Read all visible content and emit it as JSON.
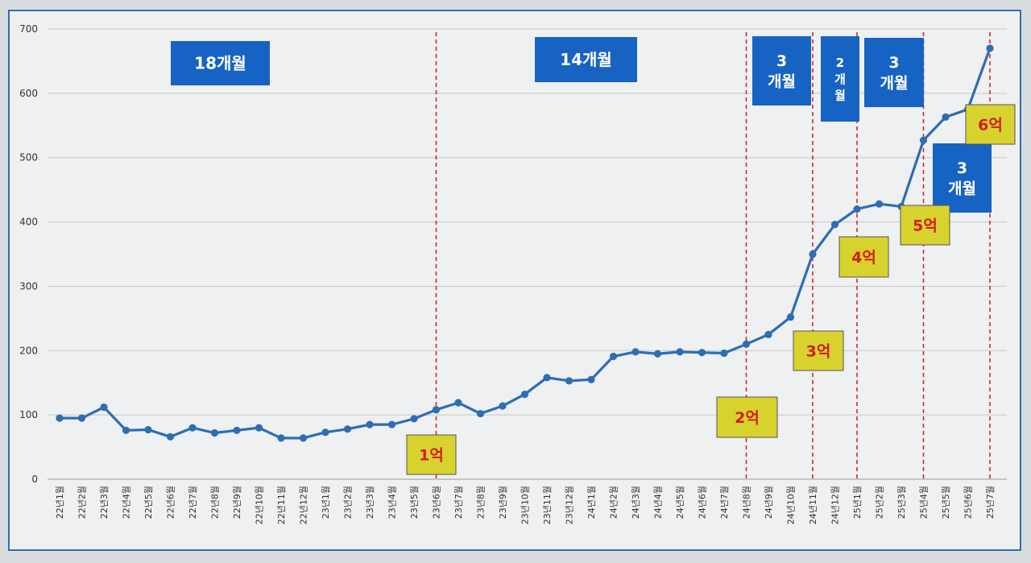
{
  "chart_data": {
    "type": "line",
    "title": "",
    "xlabel": "",
    "ylabel": "",
    "ylim": [
      0,
      700
    ],
    "yticks": [
      0,
      100,
      200,
      300,
      400,
      500,
      600,
      700
    ],
    "grid": true,
    "categories": [
      "22년1월",
      "22년2월",
      "22년3월",
      "22년4월",
      "22년5월",
      "22년6월",
      "22년7월",
      "22년8월",
      "22년9월",
      "22년10월",
      "22년11월",
      "22년12월",
      "23년1월",
      "23년2월",
      "23년3월",
      "23년4월",
      "23년5월",
      "23년6월",
      "23년7월",
      "23년8월",
      "23년9월",
      "23년10월",
      "23년11월",
      "23년12월",
      "24년1월",
      "24년2월",
      "24년3월",
      "24년4월",
      "24년5월",
      "24년6월",
      "24년7월",
      "24년8월",
      "24년9월",
      "24년10월",
      "24년11월",
      "24년12월",
      "25년1월",
      "25년2월",
      "25년3월",
      "25년4월",
      "25년5월",
      "25년6월",
      "25년7월"
    ],
    "series": [
      {
        "color": "#2e6db4",
        "values": [
          95,
          95,
          112,
          76,
          77,
          66,
          80,
          72,
          76,
          80,
          64,
          64,
          73,
          78,
          85,
          85,
          94,
          108,
          119,
          102,
          114,
          132,
          158,
          153,
          155,
          191,
          198,
          195,
          198,
          197,
          196,
          210,
          225,
          252,
          350,
          396,
          420,
          428,
          424,
          527,
          563,
          575,
          670
        ]
      }
    ],
    "markers": [
      {
        "category": "23년6월",
        "label": "1억"
      },
      {
        "category": "24년8월",
        "label": "2억"
      },
      {
        "category": "24년11월",
        "label": "3억"
      },
      {
        "category": "25년1월",
        "label": "4억"
      },
      {
        "category": "25년4월",
        "label": "5억"
      },
      {
        "category": "25년7월",
        "label": "6억"
      }
    ],
    "period_labels": [
      {
        "lines": [
          "18개월"
        ]
      },
      {
        "lines": [
          "14개월"
        ]
      },
      {
        "lines": [
          "3",
          "개월"
        ]
      },
      {
        "lines": [
          "2",
          "개",
          "월"
        ]
      },
      {
        "lines": [
          "3",
          "개월"
        ]
      },
      {
        "lines": [
          "3",
          "개월"
        ]
      }
    ],
    "colors": {
      "line": "#2e6db4",
      "marker_line": "#d6262b",
      "period_box": "#1763c4",
      "milestone_box": "#d8d22e",
      "milestone_text": "#d21c1c"
    }
  }
}
